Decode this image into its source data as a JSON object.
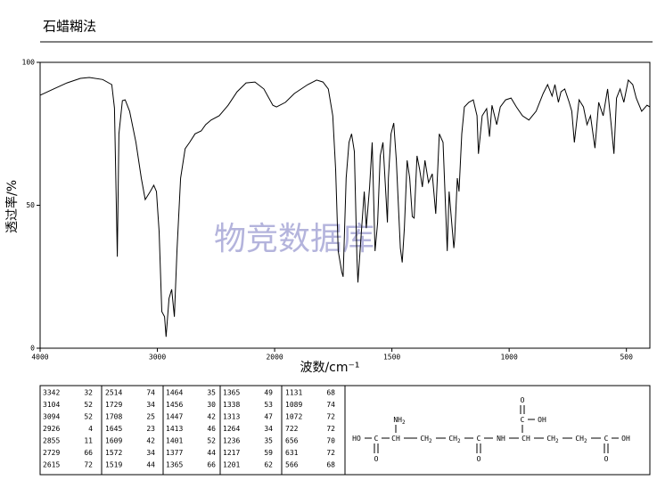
{
  "header": {
    "title": "石蜡糊法"
  },
  "chart_data": {
    "type": "line",
    "xlabel": "波数/cm⁻¹",
    "ylabel": "透过率/%",
    "watermark": "物竞数据库",
    "xlim": [
      4000,
      400
    ],
    "ylim": [
      0,
      100
    ],
    "xticks": [
      4000,
      3000,
      2000,
      1500,
      1000,
      500
    ],
    "yticks": [
      0,
      50,
      100
    ],
    "x_scale_break": 2000,
    "color": "#000000",
    "series": [
      {
        "name": null,
        "color": "#000000",
        "x": [
          4000,
          3885,
          3771,
          3656,
          3580,
          3466,
          3389,
          3366,
          3342,
          3328,
          3298,
          3275,
          3237,
          3183,
          3137,
          3104,
          3061,
          3031,
          3008,
          2985,
          2962,
          2939,
          2926,
          2901,
          2878,
          2855,
          2832,
          2802,
          2763,
          2725,
          2679,
          2626,
          2588,
          2542,
          2473,
          2397,
          2321,
          2244,
          2168,
          2092,
          2015,
          1992,
          1954,
          1916,
          1859,
          1821,
          1794,
          1771,
          1752,
          1740,
          1729,
          1714,
          1708,
          1695,
          1683,
          1672,
          1660,
          1649,
          1645,
          1630,
          1618,
          1609,
          1595,
          1584,
          1572,
          1561,
          1550,
          1538,
          1519,
          1515,
          1504,
          1492,
          1481,
          1464,
          1456,
          1447,
          1435,
          1424,
          1413,
          1405,
          1393,
          1382,
          1370,
          1359,
          1344,
          1328,
          1313,
          1298,
          1282,
          1264,
          1256,
          1236,
          1233,
          1221,
          1214,
          1202,
          1191,
          1172,
          1153,
          1137,
          1131,
          1115,
          1096,
          1084,
          1073,
          1053,
          1038,
          1015,
          992,
          969,
          943,
          916,
          885,
          855,
          836,
          817,
          805,
          790,
          779,
          763,
          744,
          733,
          722,
          702,
          683,
          668,
          653,
          634,
          618,
          599,
          580,
          565,
          553,
          542,
          527,
          511,
          492,
          473,
          458,
          435,
          412,
          400
        ],
        "values": [
          88.5,
          90.7,
          92.8,
          94.4,
          94.7,
          94,
          92.2,
          84,
          32,
          75,
          86.6,
          86.9,
          82.9,
          72,
          59.5,
          52,
          54.8,
          57,
          54.8,
          40.8,
          12.8,
          11,
          4,
          17.4,
          20.6,
          11,
          34.6,
          59.5,
          69.8,
          72,
          75,
          76,
          78.2,
          79.8,
          81.3,
          85,
          89.7,
          92.8,
          93.1,
          90.7,
          85,
          84.4,
          86,
          89.1,
          92.2,
          93.8,
          93.1,
          90.7,
          81.3,
          62.6,
          34,
          26.8,
          25,
          59.5,
          72,
          75,
          68.8,
          31.5,
          23,
          40.8,
          54.8,
          42,
          56.4,
          72,
          34,
          43.9,
          67.3,
          72,
          44,
          59.5,
          75,
          78.8,
          65.7,
          35,
          30,
          42,
          65.7,
          59.5,
          46,
          45.5,
          67.3,
          62.6,
          56.4,
          65.7,
          57.9,
          61,
          47,
          75,
          72,
          34,
          54.8,
          35,
          37.7,
          59.5,
          54.8,
          75,
          84.4,
          86,
          86.9,
          81.3,
          68,
          81.3,
          83.8,
          74,
          85,
          78.2,
          84.4,
          86.9,
          87.5,
          84.4,
          81.3,
          79.8,
          82.9,
          89.1,
          92.2,
          88.2,
          92.2,
          86,
          89.7,
          90.7,
          86,
          82.9,
          72,
          86.9,
          84.4,
          78.2,
          81.3,
          70,
          86,
          81.3,
          90.7,
          78.2,
          68,
          87.5,
          90.7,
          86,
          93.8,
          92.2,
          87.5,
          82.9,
          85,
          84.4
        ]
      }
    ]
  },
  "peak_table": {
    "columns": [
      [
        [
          3342,
          32
        ],
        [
          3104,
          52
        ],
        [
          3094,
          52
        ],
        [
          2926,
          4
        ],
        [
          2855,
          11
        ],
        [
          2729,
          66
        ],
        [
          2615,
          72
        ]
      ],
      [
        [
          2514,
          74
        ],
        [
          1729,
          34
        ],
        [
          1708,
          25
        ],
        [
          1645,
          23
        ],
        [
          1609,
          42
        ],
        [
          1572,
          34
        ],
        [
          1519,
          44
        ]
      ],
      [
        [
          1464,
          35
        ],
        [
          1456,
          30
        ],
        [
          1447,
          42
        ],
        [
          1413,
          46
        ],
        [
          1401,
          52
        ],
        [
          1377,
          44
        ],
        [
          1365,
          66
        ]
      ],
      [
        [
          1365,
          49
        ],
        [
          1338,
          53
        ],
        [
          1313,
          47
        ],
        [
          1264,
          34
        ],
        [
          1236,
          35
        ],
        [
          1217,
          59
        ],
        [
          1201,
          62
        ]
      ],
      [
        [
          1131,
          68
        ],
        [
          1089,
          74
        ],
        [
          1072,
          72
        ],
        [
          722,
          72
        ],
        [
          656,
          70
        ],
        [
          631,
          72
        ],
        [
          566,
          68
        ]
      ]
    ]
  },
  "structure": {
    "nodes": [
      {
        "text": "HO"
      },
      {
        "text": "C"
      },
      {
        "text": "CH"
      },
      {
        "text": "CH",
        "sub": "2"
      },
      {
        "text": "CH",
        "sub": "2"
      },
      {
        "text": "C"
      },
      {
        "text": "NH"
      },
      {
        "text": "CH"
      },
      {
        "text": "CH",
        "sub": "2"
      },
      {
        "text": "CH",
        "sub": "2"
      },
      {
        "text": "C"
      },
      {
        "text": "OH"
      },
      {
        "text": "NH",
        "sub": "2"
      },
      {
        "text": "O"
      },
      {
        "text": "O"
      },
      {
        "text": "C"
      },
      {
        "text": "OH"
      },
      {
        "text": "O"
      },
      {
        "text": "O"
      }
    ]
  }
}
